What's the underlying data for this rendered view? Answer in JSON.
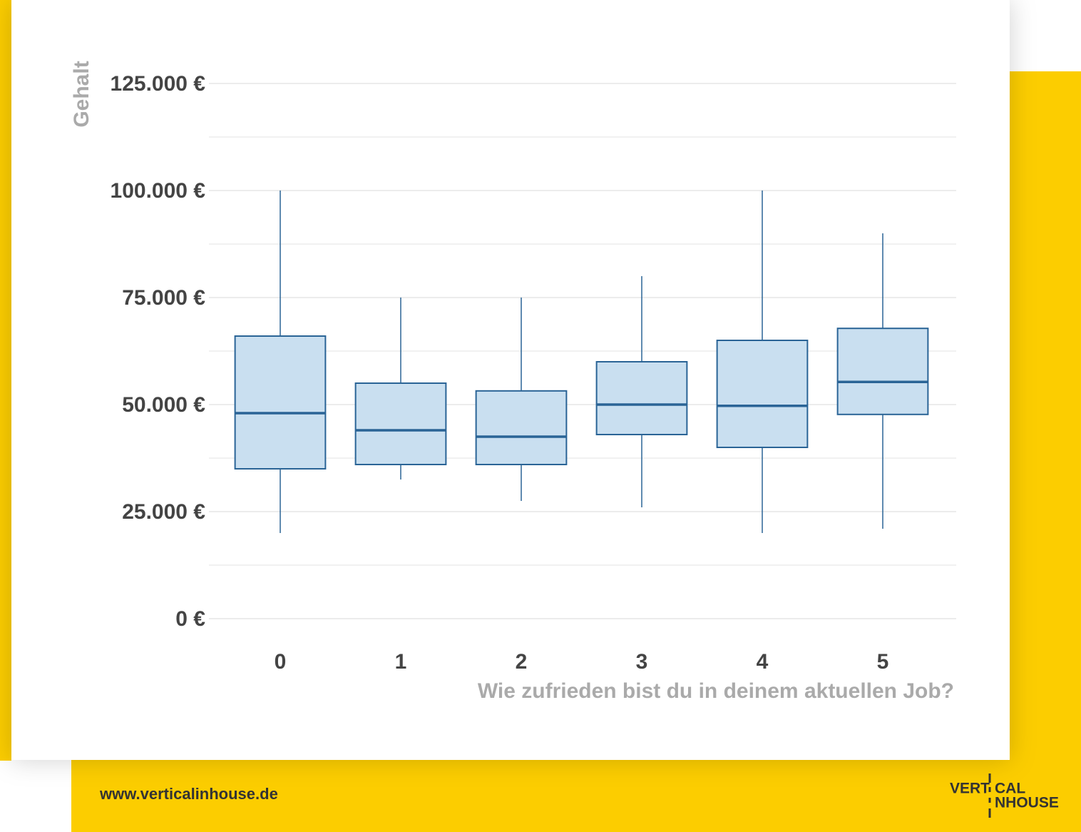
{
  "chart_data": {
    "type": "box",
    "y_label": "Gehalt",
    "x_label": "Wie zufrieden bist du in deinem aktuellen Job?",
    "categories": [
      "0",
      "1",
      "2",
      "3",
      "4",
      "5"
    ],
    "min": [
      20000,
      32500,
      27500,
      26000,
      20000,
      21000
    ],
    "q1": [
      35000,
      36000,
      36000,
      43000,
      40000,
      47700
    ],
    "median": [
      48000,
      44000,
      42500,
      50000,
      49700,
      55300
    ],
    "q3": [
      66000,
      55000,
      53200,
      60000,
      65000,
      67800
    ],
    "max": [
      100000,
      75000,
      75000,
      80000,
      100000,
      90000
    ],
    "color": "#2a6496",
    "fill": "#c9dff0",
    "ylim": [
      0,
      125000
    ],
    "yticks": [
      {
        "value": 0,
        "label": "0 €"
      },
      {
        "value": 25000,
        "label": "25.000 €"
      },
      {
        "value": 50000,
        "label": "50.000 €"
      },
      {
        "value": 75000,
        "label": "75.000 €"
      },
      {
        "value": 100000,
        "label": "100.000 €"
      },
      {
        "value": 125000,
        "label": "125.000 €"
      }
    ],
    "minor_yticks": [
      12500,
      37500,
      62500,
      87500,
      112500
    ],
    "grid": true
  },
  "footer": {
    "url": "www.verticalinhouse.de",
    "logo": [
      "VERT",
      "CAL",
      "NHOUSE"
    ]
  }
}
